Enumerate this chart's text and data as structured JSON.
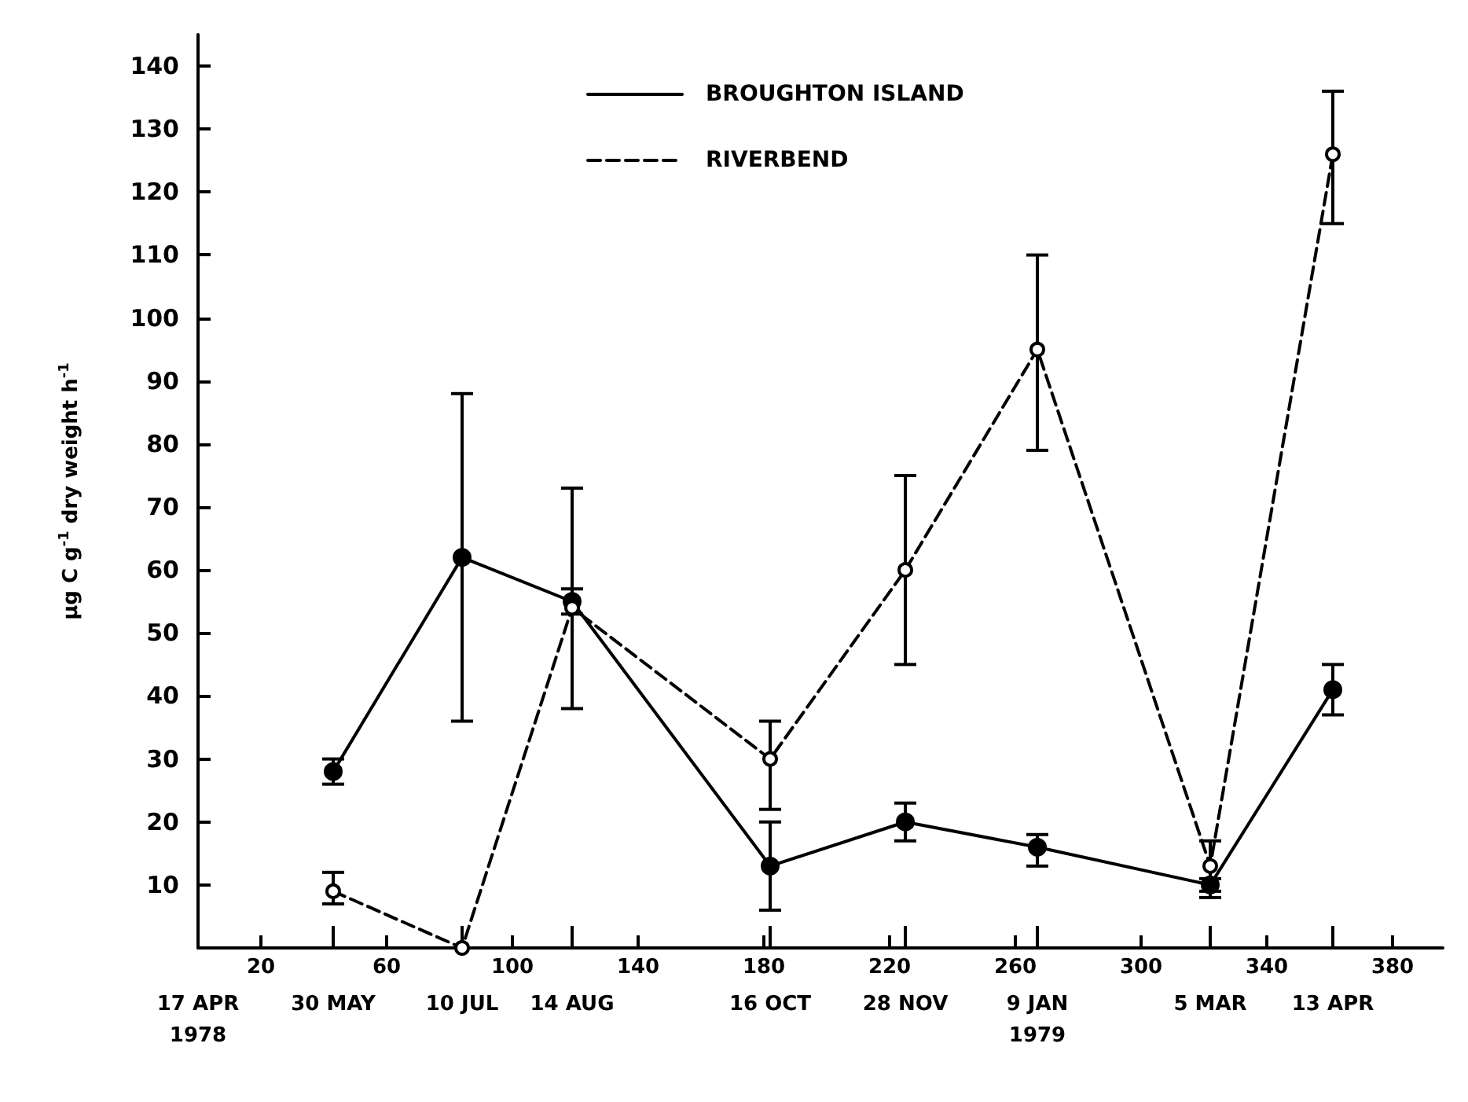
{
  "chart_data": {
    "type": "line",
    "ylabel": "μg C g$^{-1}$ dry weight h$^{-1}$",
    "xlim": [
      0,
      396
    ],
    "xticks": [
      20,
      60,
      100,
      140,
      180,
      220,
      260,
      300,
      340,
      380
    ],
    "x2lim": [
      "1978-04-17",
      "1979-05-18"
    ],
    "x2ticks": [
      {
        "value": "1978-04-17",
        "label": "17 APR\n1978"
      },
      {
        "value": "1978-05-30",
        "label": "30 MAY"
      },
      {
        "value": "1978-07-10",
        "label": "10 JUL"
      },
      {
        "value": "1978-08-14",
        "label": "14 AUG"
      },
      {
        "value": "1978-10-16",
        "label": "16 OCT"
      },
      {
        "value": "1978-11-28",
        "label": "28 NOV"
      },
      {
        "value": "1979-01-09",
        "label": "9 JAN\n1979"
      },
      {
        "value": "1979-03-05",
        "label": "5 MAR"
      },
      {
        "value": "1979-04-13",
        "label": "13 APR"
      }
    ],
    "ylim": [
      0,
      145
    ],
    "yticks": [
      10,
      20,
      30,
      40,
      50,
      60,
      70,
      80,
      90,
      100,
      110,
      120,
      130,
      140
    ],
    "grid": false,
    "legend": "top",
    "marker": "circle",
    "series": [
      {
        "name": "BROUGHTON ISLAND",
        "color": "#000000",
        "line_style": "solid",
        "x": [
          43,
          84,
          119,
          182,
          225,
          267,
          322,
          361
        ],
        "values": [
          28,
          62,
          55,
          13,
          20,
          16,
          10,
          41
        ],
        "errors": [
          [
            26,
            30
          ],
          [
            36,
            88
          ],
          [
            38,
            73
          ],
          [
            6,
            20
          ],
          [
            17,
            23
          ],
          [
            13,
            18
          ],
          [
            8,
            11
          ],
          [
            37,
            45
          ]
        ]
      },
      {
        "name": "RIVERBEND",
        "color": "#000000",
        "line_style": "dashed",
        "x": [
          43,
          84,
          119,
          182,
          225,
          267,
          322,
          361
        ],
        "values": [
          9,
          0,
          54,
          30,
          60,
          95,
          13,
          126
        ],
        "errors": [
          [
            7,
            12
          ],
          null,
          [
            53,
            57
          ],
          [
            22,
            36
          ],
          [
            45,
            75
          ],
          [
            79,
            110
          ],
          [
            9,
            17
          ],
          [
            115,
            136
          ]
        ]
      }
    ]
  }
}
